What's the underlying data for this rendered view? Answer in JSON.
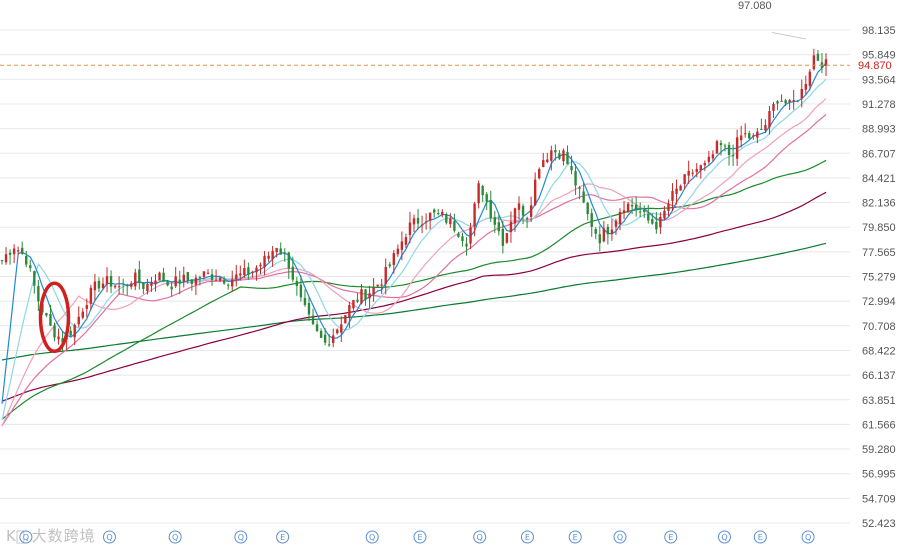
{
  "chart_data": {
    "type": "candlestick",
    "ylim": [
      52.423,
      98.135
    ],
    "y_ticks": [
      "98.135",
      "95.849",
      "93.564",
      "91.278",
      "88.993",
      "86.707",
      "84.421",
      "82.136",
      "79.850",
      "77.565",
      "75.279",
      "72.994",
      "70.708",
      "68.422",
      "66.137",
      "63.851",
      "61.566",
      "59.280",
      "56.995",
      "54.709",
      "52.423"
    ],
    "current_price": "94.870",
    "high_label": "97.080",
    "bar_count": 205,
    "keypoints": [
      [
        0,
        76.8
      ],
      [
        4,
        78.2
      ],
      [
        8,
        77.0
      ],
      [
        12,
        73.2
      ],
      [
        16,
        70.6
      ],
      [
        20,
        69.4
      ],
      [
        24,
        70.5
      ],
      [
        28,
        73.0
      ],
      [
        32,
        74.6
      ],
      [
        36,
        74.8
      ],
      [
        40,
        74.2
      ],
      [
        44,
        75.2
      ],
      [
        48,
        74.3
      ],
      [
        52,
        75.5
      ],
      [
        56,
        74.5
      ],
      [
        60,
        75.0
      ],
      [
        64,
        74.9
      ],
      [
        68,
        75.5
      ],
      [
        72,
        75.3
      ],
      [
        76,
        75.0
      ],
      [
        80,
        75.4
      ],
      [
        84,
        75.8
      ],
      [
        88,
        76.8
      ],
      [
        92,
        78.2
      ],
      [
        96,
        76.5
      ],
      [
        100,
        73.0
      ],
      [
        104,
        70.5
      ],
      [
        108,
        69.0
      ],
      [
        112,
        70.4
      ],
      [
        116,
        72.3
      ],
      [
        120,
        73.5
      ],
      [
        124,
        74.0
      ],
      [
        128,
        75.3
      ],
      [
        132,
        77.4
      ],
      [
        136,
        79.8
      ],
      [
        140,
        80.6
      ],
      [
        144,
        81.0
      ],
      [
        148,
        80.8
      ],
      [
        152,
        79.8
      ],
      [
        156,
        78.5
      ],
      [
        160,
        84.0
      ],
      [
        164,
        81.0
      ],
      [
        168,
        78.5
      ],
      [
        172,
        82.0
      ],
      [
        176,
        81.0
      ],
      [
        180,
        85.8
      ],
      [
        184,
        87.0
      ],
      [
        188,
        86.7
      ],
      [
        192,
        84.0
      ],
      [
        196,
        81.0
      ],
      [
        200,
        78.8
      ],
      [
        204,
        80.0
      ],
      [
        208,
        82.0
      ],
      [
        212,
        81.8
      ],
      [
        216,
        80.5
      ],
      [
        220,
        80.0
      ],
      [
        224,
        82.5
      ],
      [
        228,
        84.0
      ],
      [
        232,
        85.2
      ],
      [
        236,
        85.5
      ],
      [
        240,
        87.5
      ],
      [
        244,
        86.5
      ],
      [
        248,
        88.5
      ],
      [
        252,
        88.0
      ],
      [
        256,
        89.5
      ],
      [
        260,
        92.0
      ],
      [
        264,
        91.0
      ],
      [
        268,
        92.5
      ],
      [
        272,
        95.8
      ],
      [
        276,
        94.87
      ]
    ],
    "moving_averages": [
      {
        "color": "#1f8ad6",
        "period": 5
      },
      {
        "color": "#8fd6e8",
        "period": 10
      },
      {
        "color": "#f0a0b8",
        "period": 20
      },
      {
        "color": "#e070a0",
        "period": 30
      },
      {
        "color": "#1a8a2a",
        "period": 60
      },
      {
        "color": "#8a0040",
        "period": 120
      },
      {
        "color": "#0a7a30",
        "period": 250
      }
    ],
    "bottom_markers": [
      {
        "label": "Q",
        "pos": 8
      },
      {
        "label": "Q",
        "pos": 36
      },
      {
        "label": "Q",
        "pos": 58
      },
      {
        "label": "Q",
        "pos": 80
      },
      {
        "label": "E",
        "pos": 94
      },
      {
        "label": "Q",
        "pos": 124
      },
      {
        "label": "E",
        "pos": 140
      },
      {
        "label": "Q",
        "pos": 160
      },
      {
        "label": "E",
        "pos": 176
      },
      {
        "label": "E",
        "pos": 192
      },
      {
        "label": "Q",
        "pos": 207
      },
      {
        "label": "E",
        "pos": 224
      },
      {
        "label": "Q",
        "pos": 242
      },
      {
        "label": "E",
        "pos": 254
      },
      {
        "label": "Q",
        "pos": 270
      }
    ]
  },
  "colors": {
    "up": "#c62a2a",
    "down": "#2a8a3a",
    "grid": "#e8e8e8",
    "price_line": "#e0904a",
    "price_text": "#d02020",
    "annotation": "#d02020",
    "marker": "#5b8fd6"
  },
  "watermark": "K⃝ 大数跨境"
}
